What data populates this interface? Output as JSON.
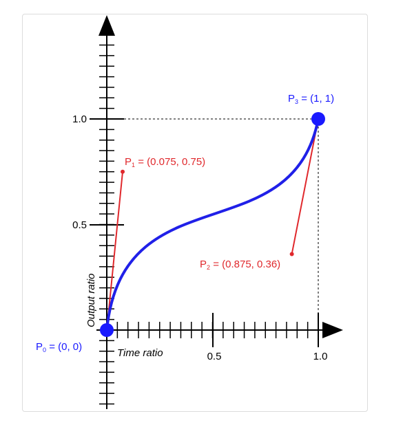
{
  "diagram": {
    "x_axis": {
      "title": "Time ratio",
      "tick_labels": [
        "0.5",
        "1.0"
      ]
    },
    "y_axis": {
      "title": "Output ratio",
      "tick_labels": [
        "1.0",
        "0.5"
      ]
    },
    "points": {
      "p0": {
        "letter": "P",
        "sub": "0",
        "text": " = (0, 0)",
        "x": 0,
        "y": 0,
        "color": "#1a1aff"
      },
      "p1": {
        "letter": "P",
        "sub": "1",
        "text": " = (0.075, 0.75)",
        "x": 0.075,
        "y": 0.75,
        "color": "#e0282c"
      },
      "p2": {
        "letter": "P",
        "sub": "2",
        "text": " = (0.875, 0.36)",
        "x": 0.875,
        "y": 0.36,
        "color": "#e0282c"
      },
      "p3": {
        "letter": "P",
        "sub": "3",
        "text": " = (1, 1)",
        "x": 1,
        "y": 1,
        "color": "#1a1aff"
      }
    },
    "colors": {
      "curve": "#2020e8",
      "handle": "#e0282c",
      "axis": "#000000",
      "guide": "#000000"
    }
  }
}
